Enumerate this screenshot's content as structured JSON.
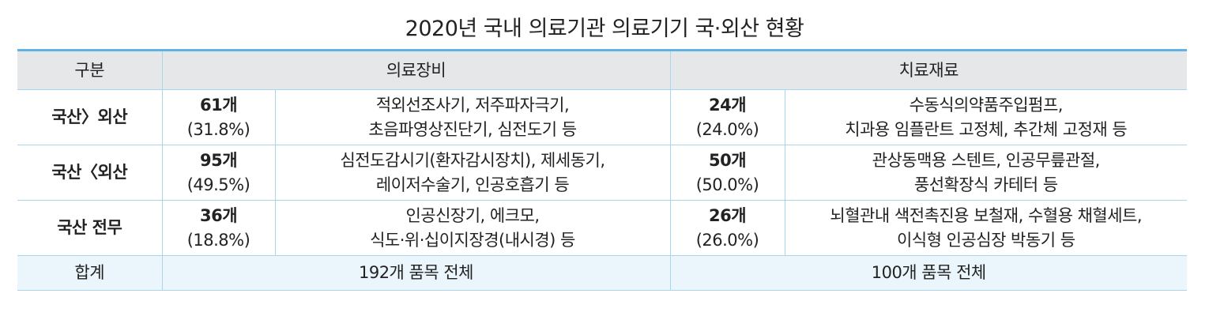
{
  "header": {
    "title": "2020년 국내 의료기관 의료기기 국·외산 현황"
  },
  "table": {
    "headers": [
      "구분",
      "의료장비",
      "치료재료"
    ],
    "rows": [
      {
        "label": "국산〉외산",
        "equip_count": "61개",
        "equip_pct": "(31.8%)",
        "equip_items": [
          "적외선조사기, 저주파자극기,",
          "초음파영상진단기, 심전도기 등"
        ],
        "mat_count": "24개",
        "mat_pct": "(24.0%)",
        "mat_items": [
          "수동식의약품주입펌프,",
          "치과용 임플란트 고정체, 추간체 고정재 등"
        ]
      },
      {
        "label": "국산〈외산",
        "equip_count": "95개",
        "equip_pct": "(49.5%)",
        "equip_items": [
          "심전도감시기(환자감시장치), 제세동기,",
          "레이저수술기, 인공호흡기 등"
        ],
        "mat_count": "50개",
        "mat_pct": "(50.0%)",
        "mat_items": [
          "관상동맥용 스텐트, 인공무릎관절,",
          "풍선확장식 카테터 등"
        ]
      },
      {
        "label": "국산 전무",
        "equip_count": "36개",
        "equip_pct": "(18.8%)",
        "equip_items": [
          "인공신장기, 에크모,",
          "식도·위·십이지장경(내시경) 등"
        ],
        "mat_count": "26개",
        "mat_pct": "(26.0%)",
        "mat_items": [
          "뇌혈관내 색전촉진용 보철재, 수혈용 채혈세트,",
          "이식형 인공심장 박동기 등"
        ]
      }
    ],
    "total": {
      "label": "합계",
      "equip": "192개 품목 전체",
      "mat": "100개 품목 전체"
    }
  }
}
